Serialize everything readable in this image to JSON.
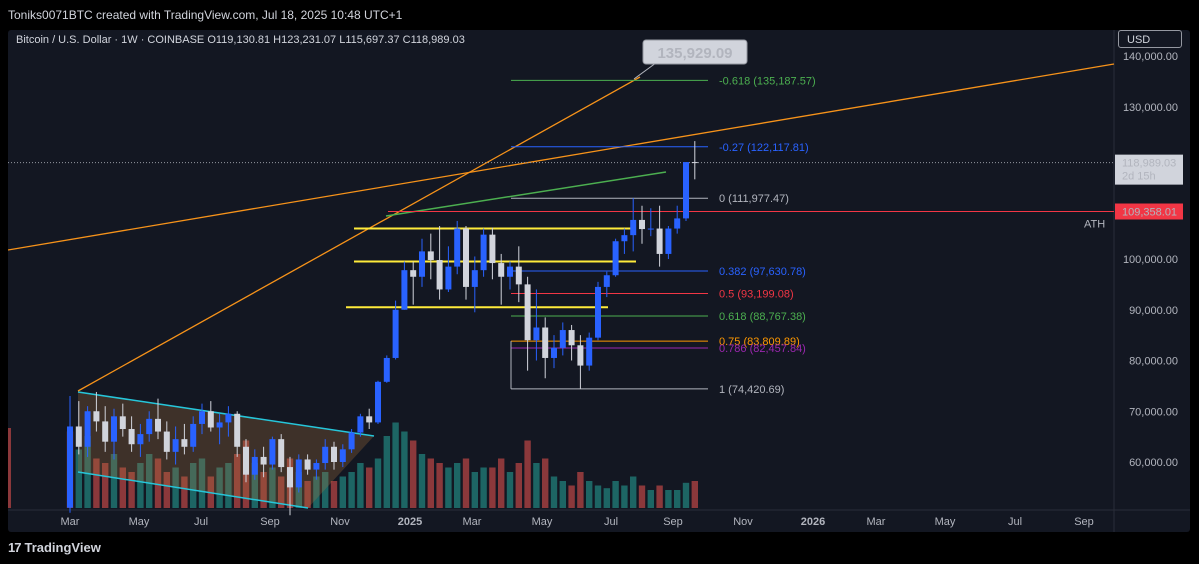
{
  "header": {
    "text": "Toniks0071BTC created with TradingView.com, Jul 18, 2025 10:48 UTC+1"
  },
  "symbol": {
    "info": "Bitcoin / U.S. Dollar · 1W · COINBASE  O119,130.81  H123,231.07  L115,697.37  C118,989.03"
  },
  "currency_button": "USD",
  "footer": {
    "logo_mark": "17",
    "logo_text": "TradingView"
  },
  "colors": {
    "bg": "#131722",
    "up": "#2962ff",
    "down": "#d1d4dc",
    "ath": "#f23645",
    "orange": "#f7931a",
    "yellow": "#ffeb3b",
    "cyan": "#26c6da",
    "green": "#4caf50"
  },
  "chart_data": {
    "type": "candlestick",
    "title": "Bitcoin / U.S. Dollar · 1W · COINBASE",
    "ohlc_last": {
      "open": 119130.81,
      "high": 123231.07,
      "low": 115697.37,
      "close": 118989.03
    },
    "ylim": [
      50000,
      145000
    ],
    "y_ticks": [
      "140,000.00",
      "130,000.00",
      "100,000.00",
      "90,000.00",
      "80,000.00",
      "70,000.00",
      "60,000.00"
    ],
    "x_ticks": [
      "Mar",
      "May",
      "Jul",
      "Sep",
      "Nov",
      "2025",
      "Mar",
      "May",
      "Jul",
      "Sep",
      "Nov",
      "2026",
      "Mar",
      "May",
      "Jul",
      "Sep"
    ],
    "price_labels": {
      "current": "118,989.03",
      "countdown": "2d 15h",
      "ath_value": "109,358.01",
      "ath_label": "ATH",
      "target": "135,929.09"
    },
    "fib_levels": [
      {
        "label": "-0.618 (135,187.57)",
        "value": 135187.57,
        "color": "#4caf50"
      },
      {
        "label": "-0.27 (122,117.81)",
        "value": 122117.81,
        "color": "#2962ff"
      },
      {
        "label": "0 (111,977.47)",
        "value": 111977.47,
        "color": "#b2b5be"
      },
      {
        "label": "0.382 (97,630.78)",
        "value": 97630.78,
        "color": "#2962ff"
      },
      {
        "label": "0.5 (93,199.08)",
        "value": 93199.08,
        "color": "#f23645"
      },
      {
        "label": "0.618 (88,767.38)",
        "value": 88767.38,
        "color": "#4caf50"
      },
      {
        "label": "0.75 (83,809.89)",
        "value": 83809.89,
        "color": "#ff9800"
      },
      {
        "label": "0.786 (82,457.84)",
        "value": 82457.84,
        "color": "#9c27b0"
      },
      {
        "label": "1 (74,420.69)",
        "value": 74420.69,
        "color": "#b2b5be"
      }
    ],
    "support_levels": [
      106000,
      99500,
      90500
    ],
    "candles": [
      [
        51000,
        73000,
        50000,
        67000
      ],
      [
        67000,
        72000,
        61500,
        63000
      ],
      [
        63000,
        71000,
        61000,
        70000
      ],
      [
        70000,
        73800,
        66000,
        68000
      ],
      [
        68000,
        71000,
        62000,
        64000
      ],
      [
        64000,
        70500,
        60500,
        69000
      ],
      [
        69000,
        71500,
        65000,
        66500
      ],
      [
        66500,
        69000,
        62000,
        63500
      ],
      [
        63500,
        67500,
        61000,
        65500
      ],
      [
        65500,
        70000,
        64000,
        68500
      ],
      [
        68500,
        72500,
        64500,
        66000
      ],
      [
        66000,
        68000,
        60500,
        62000
      ],
      [
        62000,
        67000,
        59500,
        64500
      ],
      [
        64500,
        67500,
        61500,
        63000
      ],
      [
        63000,
        69000,
        62000,
        67500
      ],
      [
        67500,
        71500,
        65500,
        70000
      ],
      [
        70000,
        72000,
        66000,
        66800
      ],
      [
        66800,
        69500,
        63500,
        67800
      ],
      [
        67800,
        71000,
        65000,
        69500
      ],
      [
        69500,
        70000,
        61000,
        63000
      ],
      [
        63000,
        64500,
        56000,
        57500
      ],
      [
        57500,
        62500,
        56500,
        61000
      ],
      [
        61000,
        63000,
        57000,
        59500
      ],
      [
        59500,
        65000,
        58500,
        64500
      ],
      [
        64500,
        65500,
        58000,
        59000
      ],
      [
        59000,
        61000,
        49500,
        55000
      ],
      [
        55000,
        61500,
        54000,
        60500
      ],
      [
        60500,
        61500,
        57500,
        58500
      ],
      [
        58500,
        60500,
        56500,
        59800
      ],
      [
        59800,
        64500,
        58500,
        63000
      ],
      [
        63000,
        64000,
        58500,
        60000
      ],
      [
        60000,
        63500,
        59000,
        62500
      ],
      [
        62500,
        66500,
        61800,
        65800
      ],
      [
        65800,
        69500,
        65000,
        69000
      ],
      [
        69000,
        70500,
        66500,
        67800
      ],
      [
        67800,
        76000,
        67500,
        75800
      ],
      [
        75800,
        81000,
        75600,
        80500
      ],
      [
        80500,
        91800,
        80200,
        90000
      ],
      [
        90000,
        99500,
        90000,
        97800
      ],
      [
        97800,
        99500,
        91000,
        96500
      ],
      [
        96500,
        104000,
        94500,
        101500
      ],
      [
        101500,
        105000,
        96000,
        99800
      ],
      [
        99800,
        106500,
        92000,
        94000
      ],
      [
        94000,
        102500,
        93500,
        98500
      ],
      [
        98500,
        107500,
        97000,
        106000
      ],
      [
        106000,
        106500,
        92000,
        94500
      ],
      [
        94500,
        100500,
        89500,
        97800
      ],
      [
        97800,
        106000,
        96500,
        104800
      ],
      [
        104800,
        106200,
        96000,
        99200
      ],
      [
        99200,
        101000,
        91000,
        96500
      ],
      [
        96500,
        99500,
        94000,
        98500
      ],
      [
        98500,
        102500,
        91500,
        95000
      ],
      [
        95000,
        96500,
        78000,
        84000
      ],
      [
        84000,
        94000,
        80000,
        86500
      ],
      [
        86500,
        88500,
        76500,
        80500
      ],
      [
        80500,
        85000,
        78500,
        82500
      ],
      [
        82500,
        87500,
        81000,
        86000
      ],
      [
        86000,
        87000,
        80000,
        83000
      ],
      [
        83000,
        85000,
        74400,
        79000
      ],
      [
        79000,
        85500,
        78000,
        84500
      ],
      [
        84500,
        95500,
        84000,
        94500
      ],
      [
        94500,
        97500,
        92500,
        96800
      ],
      [
        96800,
        104000,
        96500,
        103500
      ],
      [
        103500,
        106000,
        101000,
        104700
      ],
      [
        104700,
        112000,
        101500,
        107700
      ],
      [
        107700,
        110500,
        103000,
        105900
      ],
      [
        105900,
        110000,
        104500,
        106000
      ],
      [
        106000,
        110500,
        98500,
        101000
      ],
      [
        101000,
        106500,
        100000,
        106000
      ],
      [
        106000,
        110500,
        105000,
        108000
      ],
      [
        108000,
        119000,
        107500,
        119100
      ],
      [
        119100,
        123231,
        115697,
        118989
      ]
    ],
    "volume_bars": [
      {
        "height": 0.85,
        "up": false
      },
      {
        "height": 0.65,
        "up": true
      },
      {
        "height": 0.8,
        "up": true
      },
      {
        "height": 0.55,
        "up": false
      },
      {
        "height": 0.5,
        "up": false
      },
      {
        "height": 0.6,
        "up": true
      },
      {
        "height": 0.45,
        "up": false
      },
      {
        "height": 0.4,
        "up": false
      },
      {
        "height": 0.5,
        "up": true
      },
      {
        "height": 0.6,
        "up": true
      },
      {
        "height": 0.55,
        "up": false
      },
      {
        "height": 0.4,
        "up": false
      },
      {
        "height": 0.45,
        "up": true
      },
      {
        "height": 0.35,
        "up": false
      },
      {
        "height": 0.5,
        "up": true
      },
      {
        "height": 0.55,
        "up": true
      },
      {
        "height": 0.35,
        "up": false
      },
      {
        "height": 0.45,
        "up": true
      },
      {
        "height": 0.5,
        "up": true
      },
      {
        "height": 0.6,
        "up": false
      },
      {
        "height": 0.75,
        "up": false
      },
      {
        "height": 0.5,
        "up": true
      },
      {
        "height": 0.4,
        "up": false
      },
      {
        "height": 0.45,
        "up": true
      },
      {
        "height": 0.35,
        "up": false
      },
      {
        "height": 0.55,
        "up": false
      },
      {
        "height": 0.4,
        "up": true
      },
      {
        "height": 0.3,
        "up": false
      },
      {
        "height": 0.35,
        "up": true
      },
      {
        "height": 0.4,
        "up": true
      },
      {
        "height": 0.3,
        "up": false
      },
      {
        "height": 0.35,
        "up": true
      },
      {
        "height": 0.4,
        "up": true
      },
      {
        "height": 0.5,
        "up": true
      },
      {
        "height": 0.45,
        "up": false
      },
      {
        "height": 0.55,
        "up": true
      },
      {
        "height": 0.8,
        "up": true
      },
      {
        "height": 0.95,
        "up": true
      },
      {
        "height": 0.85,
        "up": true
      },
      {
        "height": 0.75,
        "up": false
      },
      {
        "height": 0.6,
        "up": true
      },
      {
        "height": 0.55,
        "up": false
      },
      {
        "height": 0.5,
        "up": false
      },
      {
        "height": 0.45,
        "up": true
      },
      {
        "height": 0.5,
        "up": true
      },
      {
        "height": 0.55,
        "up": false
      },
      {
        "height": 0.4,
        "up": true
      },
      {
        "height": 0.45,
        "up": true
      },
      {
        "height": 0.45,
        "up": false
      },
      {
        "height": 0.55,
        "up": false
      },
      {
        "height": 0.4,
        "up": true
      },
      {
        "height": 0.5,
        "up": false
      },
      {
        "height": 0.75,
        "up": false
      },
      {
        "height": 0.5,
        "up": true
      },
      {
        "height": 0.55,
        "up": false
      },
      {
        "height": 0.35,
        "up": true
      },
      {
        "height": 0.3,
        "up": true
      },
      {
        "height": 0.25,
        "up": false
      },
      {
        "height": 0.4,
        "up": false
      },
      {
        "height": 0.3,
        "up": true
      },
      {
        "height": 0.25,
        "up": true
      },
      {
        "height": 0.22,
        "up": true
      },
      {
        "height": 0.3,
        "up": true
      },
      {
        "height": 0.25,
        "up": true
      },
      {
        "height": 0.35,
        "up": true
      },
      {
        "height": 0.25,
        "up": false
      },
      {
        "height": 0.2,
        "up": true
      },
      {
        "height": 0.25,
        "up": false
      },
      {
        "height": 0.2,
        "up": true
      },
      {
        "height": 0.2,
        "up": true
      },
      {
        "height": 0.28,
        "up": true
      },
      {
        "height": 0.3,
        "up": false
      }
    ]
  }
}
